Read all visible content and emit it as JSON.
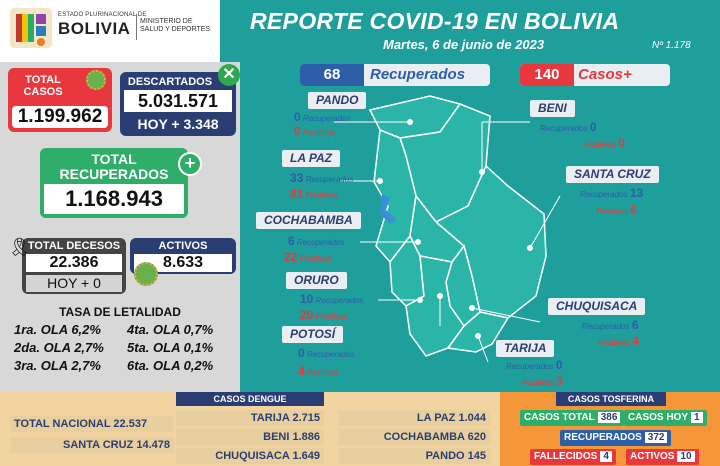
{
  "header": {
    "gov_small": "ESTADO PLURINACIONAL DE",
    "gov_big": "BOLIVIA",
    "ministry_line1": "MINISTERIO DE",
    "ministry_line2": "SALUD Y DEPORTES",
    "title": "REPORTE COVID-19 EN BOLIVIA",
    "date": "Martes, 6 de junio de 2023",
    "report_number": "Nº 1.178"
  },
  "totals": {
    "total_casos_label": "TOTAL CASOS",
    "total_casos": "1.199.962",
    "descartados_label": "DESCARTADOS",
    "descartados": "5.031.571",
    "descartados_hoy": "HOY + 3.348",
    "recuperados_label": "TOTAL RECUPERADOS",
    "recuperados": "1.168.943",
    "decesos_label": "TOTAL DECESOS",
    "decesos": "22.386",
    "decesos_hoy": "HOY +   0",
    "activos_label": "ACTIVOS",
    "activos": "8.633"
  },
  "letalidad": {
    "title": "TASA DE LETALIDAD",
    "rows": [
      [
        "1ra. OLA 6,2%",
        "4ta. OLA 0,7%"
      ],
      [
        "2da. OLA 2,7%",
        "5ta. OLA 0,1%"
      ],
      [
        "3ra. OLA 2,7%",
        "6ta. OLA 0,2%"
      ]
    ]
  },
  "daily": {
    "recuperados_n": "68",
    "recuperados_label": "Recuperados",
    "casos_n": "140",
    "casos_label": "Casos+"
  },
  "stat_labels": {
    "recuperados": "Recuperados",
    "positivos": "Positivos"
  },
  "departments": {
    "pando": {
      "name": "PANDO",
      "recuperados": "0",
      "positivos": "0"
    },
    "beni": {
      "name": "BENI",
      "recuperados": "0",
      "positivos": "0"
    },
    "lapaz": {
      "name": "LA PAZ",
      "recuperados": "33",
      "positivos": "81"
    },
    "santacruz": {
      "name": "SANTA CRUZ",
      "recuperados": "13",
      "positivos": "6"
    },
    "cochabamba": {
      "name": "COCHABAMBA",
      "recuperados": "6",
      "positivos": "22"
    },
    "oruro": {
      "name": "ORURO",
      "recuperados": "10",
      "positivos": "20"
    },
    "chuquisaca": {
      "name": "CHUQUISACA",
      "recuperados": "6",
      "positivos": "4"
    },
    "potosi": {
      "name": "POTOSÍ",
      "recuperados": "0",
      "positivos": "4"
    },
    "tarija": {
      "name": "TARIJA",
      "recuperados": "0",
      "positivos": "3"
    }
  },
  "dengue": {
    "title": "CASOS DENGUE",
    "total_label": "TOTAL NACIONAL",
    "total": "22.537",
    "items": [
      {
        "name": "SANTA CRUZ",
        "value": "14.478"
      },
      {
        "name": "TARIJA",
        "value": "2.715"
      },
      {
        "name": "BENI",
        "value": "1.886"
      },
      {
        "name": "CHUQUISACA",
        "value": "1.649"
      },
      {
        "name": "LA PAZ",
        "value": "1.044"
      },
      {
        "name": "COCHABAMBA",
        "value": "620"
      },
      {
        "name": "PANDO",
        "value": "145"
      }
    ]
  },
  "tosferina": {
    "title": "CASOS TOSFERINA",
    "total_label": "CASOS TOTAL",
    "total": "386",
    "hoy_label": "CASOS HOY",
    "hoy": "1",
    "recuperados_label": "RECUPERADOS",
    "recuperados": "372",
    "fallecidos_label": "FALLECIDOS",
    "fallecidos": "4",
    "activos_label": "ACTIVOS",
    "activos": "10"
  },
  "colors": {
    "teal": "#1e9f9c",
    "red": "#e8383d",
    "navy": "#2b3e74",
    "green": "#2fae6a",
    "orange": "#f59638",
    "map_fill": "#2bb5a8"
  }
}
